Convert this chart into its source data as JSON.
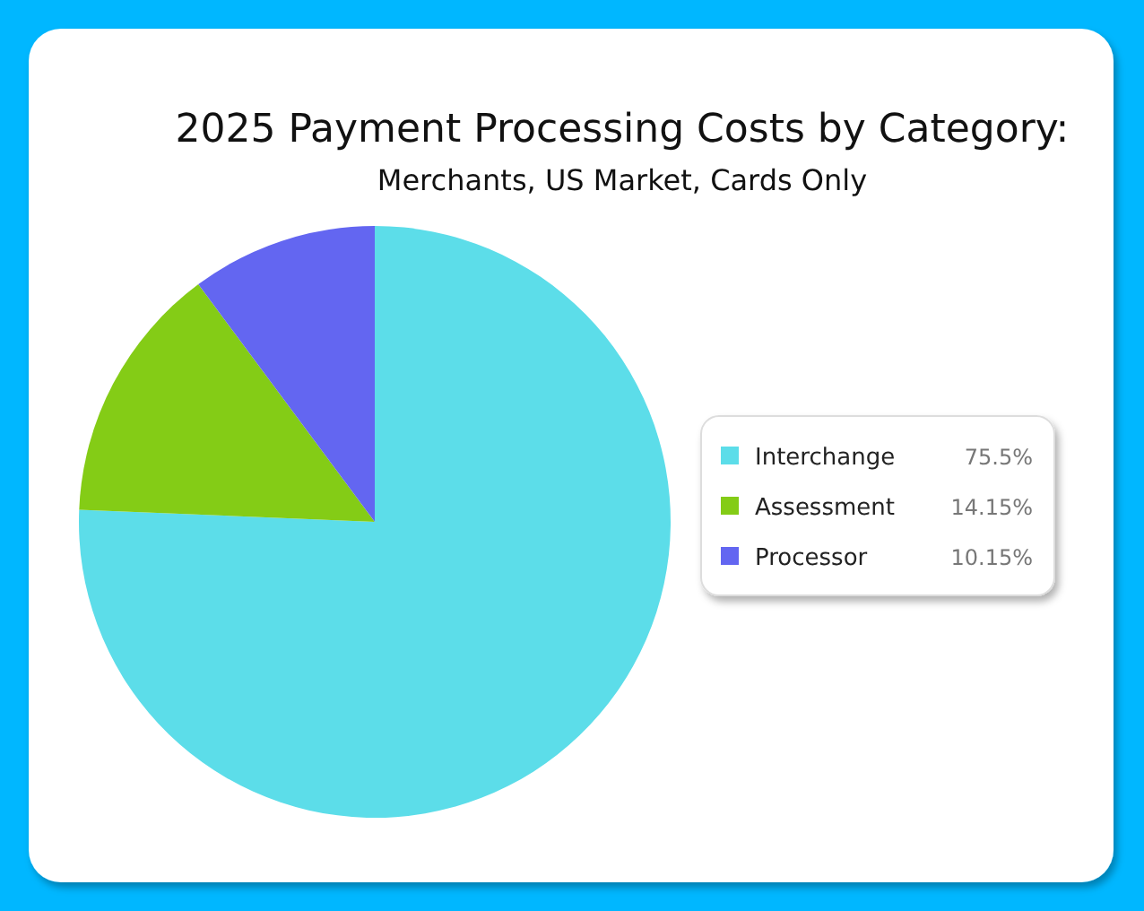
{
  "chart_data": {
    "type": "pie",
    "title": "2025 Payment Processing Costs by Category:",
    "subtitle": "Merchants, US Market, Cards Only",
    "categories": [
      "Interchange",
      "Assessment",
      "Processor"
    ],
    "values": [
      75.5,
      14.15,
      10.15
    ],
    "colors": [
      "#5cdde9",
      "#84cc16",
      "#6366f1"
    ],
    "value_labels": [
      "75.5%",
      "14.15%",
      "10.15%"
    ],
    "legend": "right"
  }
}
